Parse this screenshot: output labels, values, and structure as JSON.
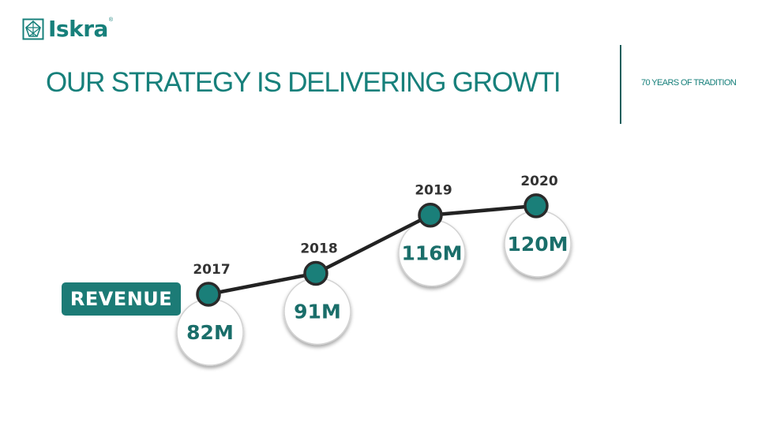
{
  "header": {
    "logo_text": "Iskra",
    "logo_registered": "®",
    "title": "OUR STRATEGY IS DELIVERING GROWTI",
    "tagline": "70 YEARS OF TRADITION"
  },
  "colors": {
    "brand_teal": "#17807b",
    "badge_teal": "#1c7b76",
    "line": "#222222",
    "dot_fill": "#1a7f79"
  },
  "chart_data": {
    "type": "line",
    "series_label": "REVENUE",
    "categories": [
      "2017",
      "2018",
      "2019",
      "2020"
    ],
    "values": [
      82,
      91,
      116,
      120
    ],
    "value_labels": [
      "82M",
      "91M",
      "116M",
      "120M"
    ]
  }
}
